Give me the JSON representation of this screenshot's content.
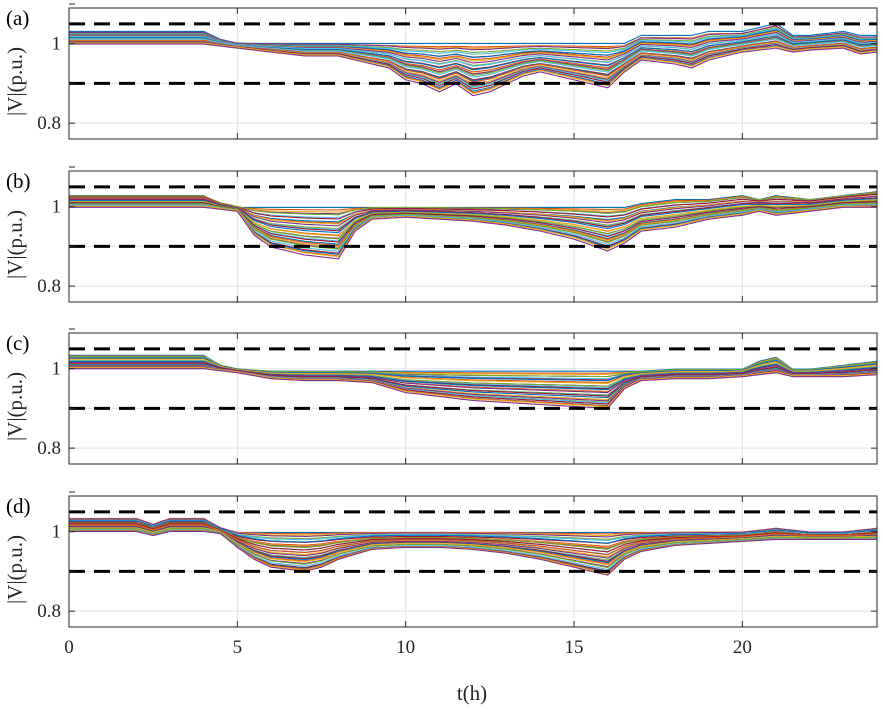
{
  "chart_data": {
    "type": "line",
    "xlabel": "t(h)",
    "xlim": [
      0,
      24
    ],
    "xticks": [
      0,
      5,
      10,
      15,
      20
    ],
    "grid": true,
    "series_count_approx": 32,
    "palette": [
      "#0072BD",
      "#D95319",
      "#EDB120",
      "#7E2F8E",
      "#77AC30",
      "#4DBEEE",
      "#A2142F"
    ],
    "limit_line_color": "#000000",
    "grid_color": "#e3e3e3",
    "panels": [
      {
        "label": "(a)",
        "ylabel": "|V|(p.u.)",
        "ylim": [
          0.76,
          1.09
        ],
        "yticks": [
          "0.8",
          "",
          "1"
        ],
        "limits": [
          0.9,
          1.05
        ],
        "description_of_envelope": "flat 1.00-1.03 until t≈4.2, near 0.99 from t≈5 to 9; deepest dip ≈0.87 around t≈11-12.5; second dip ≈0.89 near t≈16; recovers to ~1.0 after t≈17 with a spike ≈1.04 near t≈21",
        "envelope": {
          "t": [
            0,
            4,
            4.5,
            5,
            6,
            7,
            8,
            9,
            9.5,
            10,
            10.5,
            11,
            11.5,
            12,
            12.5,
            13,
            13.5,
            14,
            15,
            16,
            16.5,
            17,
            18,
            18.5,
            19,
            20,
            20.5,
            21,
            21.5,
            22,
            23,
            23.5,
            24
          ],
          "upper": [
            1.03,
            1.03,
            1.01,
            1.0,
            1.0,
            1.0,
            1.0,
            1.0,
            1.0,
            1.0,
            1.0,
            1.0,
            1.0,
            1.0,
            1.0,
            1.0,
            1.0,
            1.0,
            1.0,
            1.0,
            1.0,
            1.02,
            1.02,
            1.02,
            1.03,
            1.03,
            1.04,
            1.05,
            1.02,
            1.02,
            1.03,
            1.02,
            1.02
          ],
          "lower": [
            1.0,
            1.0,
            0.995,
            0.99,
            0.98,
            0.97,
            0.97,
            0.95,
            0.94,
            0.91,
            0.9,
            0.88,
            0.9,
            0.87,
            0.88,
            0.9,
            0.92,
            0.93,
            0.91,
            0.89,
            0.93,
            0.96,
            0.95,
            0.94,
            0.96,
            0.98,
            0.985,
            0.99,
            0.98,
            0.985,
            0.99,
            0.975,
            0.98
          ]
        }
      },
      {
        "label": "(b)",
        "ylabel": "|V|(p.u.)",
        "ylim": [
          0.76,
          1.09
        ],
        "yticks": [
          "0.8",
          "",
          "1"
        ],
        "limits": [
          0.9,
          1.05
        ],
        "description_of_envelope": "flat 1.00-1.03 until t≈4.3; deep dip ≈0.87 from t≈5.5 to 8; back near 0.98-1.0 after t≈8.5; dip ≈0.89 near t≈16; rises to ~1.02-1.03 after t≈20",
        "envelope": {
          "t": [
            0,
            4,
            4.5,
            5,
            5.5,
            6,
            7,
            8,
            8.5,
            9,
            10,
            11,
            12,
            13,
            14,
            15,
            16,
            16.5,
            17,
            18,
            19,
            20,
            20.5,
            21,
            22,
            23,
            24
          ],
          "upper": [
            1.03,
            1.03,
            1.01,
            1.0,
            1.0,
            1.0,
            1.0,
            1.0,
            1.0,
            1.0,
            1.0,
            1.0,
            1.0,
            1.0,
            1.0,
            1.0,
            1.0,
            1.0,
            1.01,
            1.02,
            1.02,
            1.03,
            1.02,
            1.03,
            1.02,
            1.03,
            1.04
          ],
          "lower": [
            1.0,
            1.0,
            0.995,
            0.99,
            0.93,
            0.9,
            0.88,
            0.87,
            0.94,
            0.97,
            0.975,
            0.97,
            0.965,
            0.955,
            0.94,
            0.92,
            0.89,
            0.91,
            0.94,
            0.95,
            0.97,
            0.98,
            0.99,
            0.98,
            0.99,
            1.0,
            1.0
          ]
        }
      },
      {
        "label": "(c)",
        "ylabel": "|V|(p.u.)",
        "ylim": [
          0.76,
          1.09
        ],
        "yticks": [
          "0.8",
          "",
          "1"
        ],
        "limits": [
          0.9,
          1.05
        ],
        "description_of_envelope": "flat 1.00-1.035 until t≈4.2; settles ~0.99 from t≈5; gradually widening band reaching ≈0.90 near t≈16; back to ~0.99-1.0 after t≈17 with a spike ≈1.03 near t≈21",
        "envelope": {
          "t": [
            0,
            4,
            4.5,
            5,
            6,
            7,
            8,
            9,
            10,
            11,
            12,
            13,
            14,
            15,
            16,
            16.5,
            17,
            18,
            19,
            20,
            20.5,
            21,
            21.5,
            22,
            23,
            24
          ],
          "upper": [
            1.035,
            1.035,
            1.01,
            1.0,
            0.995,
            0.995,
            0.995,
            0.995,
            0.995,
            0.995,
            0.995,
            0.995,
            0.995,
            0.995,
            0.995,
            0.995,
            0.995,
            1.0,
            1.0,
            1.0,
            1.02,
            1.03,
            1.0,
            1.0,
            1.01,
            1.02
          ],
          "lower": [
            1.0,
            1.0,
            0.995,
            0.99,
            0.975,
            0.97,
            0.97,
            0.965,
            0.94,
            0.93,
            0.92,
            0.915,
            0.91,
            0.905,
            0.9,
            0.95,
            0.97,
            0.975,
            0.975,
            0.98,
            0.985,
            0.99,
            0.98,
            0.98,
            0.98,
            0.985
          ]
        }
      },
      {
        "label": "(d)",
        "ylabel": "|V|(p.u.)",
        "ylim": [
          0.76,
          1.09
        ],
        "yticks": [
          "0.8",
          "",
          "1"
        ],
        "limits": [
          0.9,
          1.05
        ],
        "description_of_envelope": "flat 1.00-1.03 with small steps at t≈2 and t≈3 until t≈4.2; dip ≈0.90 from t≈6 to 7.5; ~0.96-0.99 from t≈8 to 14; dip ≈0.89 near t≈16; back to ~0.98-1.0 afterwards with a spike ≈1.0 near t≈21",
        "envelope": {
          "t": [
            0,
            2,
            2.5,
            3,
            4,
            4.5,
            5,
            5.5,
            6,
            7,
            7.5,
            8,
            9,
            10,
            11,
            12,
            13,
            14,
            15,
            16,
            16.5,
            17,
            18,
            19,
            20,
            21,
            22,
            23,
            24
          ],
          "upper": [
            1.035,
            1.035,
            1.02,
            1.035,
            1.035,
            1.01,
            1.0,
            1.0,
            1.0,
            1.0,
            1.0,
            1.0,
            1.0,
            1.0,
            1.0,
            1.0,
            1.0,
            1.0,
            1.0,
            1.0,
            1.0,
            1.0,
            1.0,
            1.0,
            1.0,
            1.01,
            1.0,
            1.0,
            1.01
          ],
          "lower": [
            1.0,
            1.0,
            0.99,
            1.0,
            1.0,
            0.995,
            0.96,
            0.93,
            0.91,
            0.9,
            0.91,
            0.93,
            0.955,
            0.96,
            0.96,
            0.955,
            0.945,
            0.93,
            0.91,
            0.89,
            0.93,
            0.95,
            0.965,
            0.97,
            0.975,
            0.98,
            0.98,
            0.98,
            0.98
          ]
        }
      }
    ]
  }
}
